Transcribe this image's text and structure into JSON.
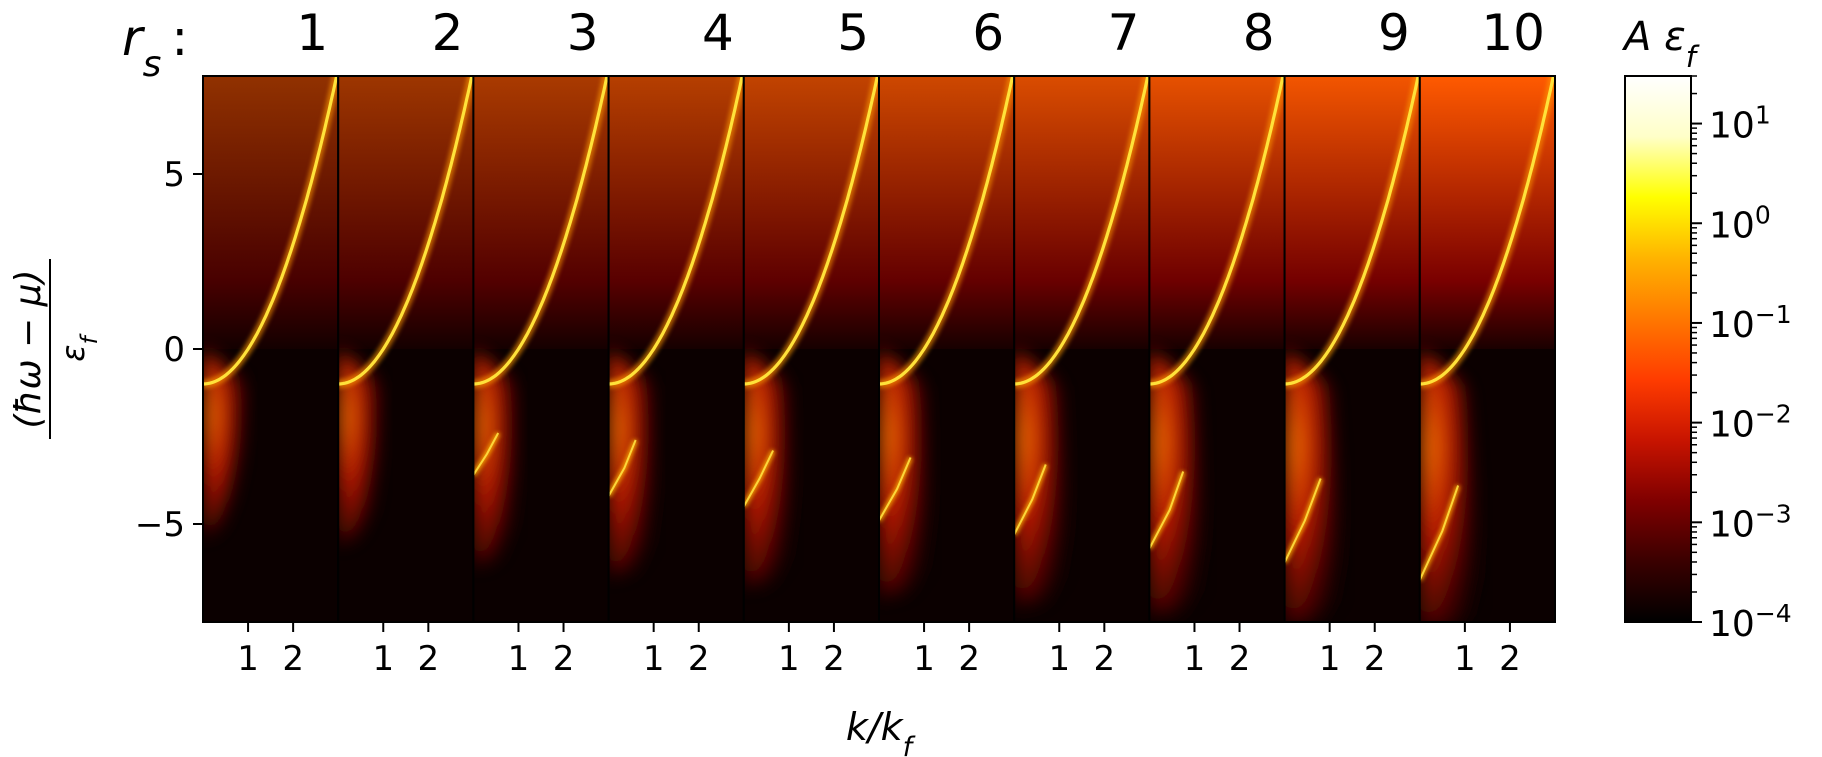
{
  "chart_data": {
    "type": "heatmap",
    "panel_label": "r_s :",
    "panels": [
      {
        "rs": "1",
        "edges": [
          [
            1.0,
            -1.1
          ],
          [
            0.85,
            -2.8
          ],
          [
            0.6,
            -4.2
          ],
          [
            0.35,
            -5.0
          ],
          [
            0.0,
            -5.4
          ]
        ],
        "plasmon": []
      },
      {
        "rs": "2",
        "edges": [
          [
            1.0,
            -1.1
          ],
          [
            0.9,
            -3.0
          ],
          [
            0.7,
            -4.6
          ],
          [
            0.4,
            -5.3
          ],
          [
            0.0,
            -5.6
          ]
        ],
        "plasmon": []
      },
      {
        "rs": "3",
        "edges": [
          [
            1.0,
            -1.1
          ],
          [
            1.0,
            -3.5
          ],
          [
            0.85,
            -5.0
          ],
          [
            0.45,
            -6.0
          ],
          [
            0.0,
            -6.2
          ]
        ],
        "plasmon": [
          [
            0.0,
            -3.6
          ],
          [
            0.3,
            -3.0
          ],
          [
            0.55,
            -2.4
          ]
        ]
      },
      {
        "rs": "4",
        "edges": [
          [
            1.0,
            -1.1
          ],
          [
            1.05,
            -4.0
          ],
          [
            0.9,
            -5.5
          ],
          [
            0.5,
            -6.3
          ],
          [
            0.0,
            -6.5
          ]
        ],
        "plasmon": [
          [
            0.0,
            -4.2
          ],
          [
            0.35,
            -3.4
          ],
          [
            0.6,
            -2.6
          ]
        ]
      },
      {
        "rs": "5",
        "edges": [
          [
            1.0,
            -1.1
          ],
          [
            1.1,
            -4.4
          ],
          [
            0.95,
            -5.9
          ],
          [
            0.55,
            -6.6
          ],
          [
            0.0,
            -6.8
          ]
        ],
        "plasmon": [
          [
            0.0,
            -4.5
          ],
          [
            0.35,
            -3.7
          ],
          [
            0.65,
            -2.9
          ]
        ]
      },
      {
        "rs": "6",
        "edges": [
          [
            1.0,
            -1.1
          ],
          [
            1.15,
            -4.8
          ],
          [
            1.0,
            -6.2
          ],
          [
            0.6,
            -6.9
          ],
          [
            0.0,
            -7.1
          ]
        ],
        "plasmon": [
          [
            0.0,
            -4.9
          ],
          [
            0.4,
            -4.0
          ],
          [
            0.7,
            -3.1
          ]
        ]
      },
      {
        "rs": "7",
        "edges": [
          [
            1.0,
            -1.1
          ],
          [
            1.2,
            -5.2
          ],
          [
            1.0,
            -6.5
          ],
          [
            0.6,
            -7.2
          ],
          [
            0.0,
            -7.3
          ]
        ],
        "plasmon": [
          [
            0.0,
            -5.3
          ],
          [
            0.4,
            -4.3
          ],
          [
            0.7,
            -3.3
          ]
        ]
      },
      {
        "rs": "8",
        "edges": [
          [
            1.0,
            -1.1
          ],
          [
            1.25,
            -5.6
          ],
          [
            1.05,
            -6.9
          ],
          [
            0.6,
            -7.5
          ],
          [
            0.0,
            -7.6
          ]
        ],
        "plasmon": [
          [
            0.0,
            -5.7
          ],
          [
            0.45,
            -4.6
          ],
          [
            0.75,
            -3.5
          ]
        ]
      },
      {
        "rs": "9",
        "edges": [
          [
            1.0,
            -1.1
          ],
          [
            1.3,
            -6.0
          ],
          [
            1.1,
            -7.2
          ],
          [
            0.6,
            -7.8
          ],
          [
            0.0,
            -7.9
          ]
        ],
        "plasmon": [
          [
            0.0,
            -6.1
          ],
          [
            0.45,
            -4.9
          ],
          [
            0.8,
            -3.7
          ]
        ]
      },
      {
        "rs": "10",
        "edges": [
          [
            1.0,
            -1.1
          ],
          [
            1.35,
            -6.5
          ],
          [
            1.1,
            -7.6
          ],
          [
            0.6,
            -8.0
          ],
          [
            0.0,
            -8.0
          ]
        ],
        "plasmon": [
          [
            0.0,
            -6.6
          ],
          [
            0.5,
            -5.2
          ],
          [
            0.85,
            -3.9
          ]
        ]
      }
    ],
    "quasiparticle_dispersion": "k^2 - 1",
    "x_range": [
      0,
      3.0
    ],
    "y_range": [
      -7.8,
      7.8
    ],
    "x_ticks": [
      "1",
      "2"
    ],
    "x_tick_values": [
      1,
      2
    ],
    "y_ticks": [
      "5",
      "0",
      "−5"
    ],
    "y_tick_values": [
      5,
      0,
      -5
    ],
    "x_label": "k/k_f",
    "y_label": "(ħω − μ)/ε_f",
    "colorbar": {
      "label": "A ε_f",
      "scale": "log",
      "range": [
        0.0001,
        30
      ],
      "ticks": [
        {
          "base": "10",
          "exp": "1",
          "value": 10
        },
        {
          "base": "10",
          "exp": "0",
          "value": 1
        },
        {
          "base": "10",
          "exp": "−1",
          "value": 0.1
        },
        {
          "base": "10",
          "exp": "−2",
          "value": 0.01
        },
        {
          "base": "10",
          "exp": "−3",
          "value": 0.001
        },
        {
          "base": "10",
          "exp": "−4",
          "value": 0.0001
        }
      ],
      "colormap": [
        "#000000",
        "#3a0000",
        "#800000",
        "#c81400",
        "#ff3c00",
        "#ff7800",
        "#ffb400",
        "#ffff00",
        "#ffffc8",
        "#ffffff"
      ]
    }
  }
}
